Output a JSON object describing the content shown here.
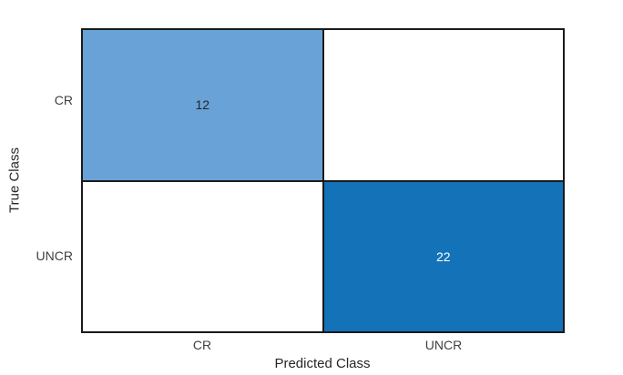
{
  "chart_data": {
    "type": "heatmap",
    "variant": "confusion-matrix",
    "title": "",
    "xlabel": "Predicted Class",
    "ylabel": "True Class",
    "x_categories": [
      "CR",
      "UNCR"
    ],
    "y_categories": [
      "CR",
      "UNCR"
    ],
    "matrix": [
      [
        12,
        0
      ],
      [
        0,
        22
      ]
    ],
    "cells": [
      {
        "true_class": "CR",
        "predicted_class": "CR",
        "value": 12,
        "label": "12",
        "bg": "#69A2D6",
        "fg": "#262626"
      },
      {
        "true_class": "CR",
        "predicted_class": "UNCR",
        "value": 0,
        "label": "",
        "bg": "#FFFFFF",
        "fg": "#262626"
      },
      {
        "true_class": "UNCR",
        "predicted_class": "CR",
        "value": 0,
        "label": "",
        "bg": "#FFFFFF",
        "fg": "#262626"
      },
      {
        "true_class": "UNCR",
        "predicted_class": "UNCR",
        "value": 22,
        "label": "22",
        "bg": "#1372B8",
        "fg": "#FFFFFF"
      }
    ],
    "grid_color": "#1A1A1A",
    "plot_background": "#FFFFFF",
    "legend": "none",
    "grid": "cell-borders-only"
  }
}
